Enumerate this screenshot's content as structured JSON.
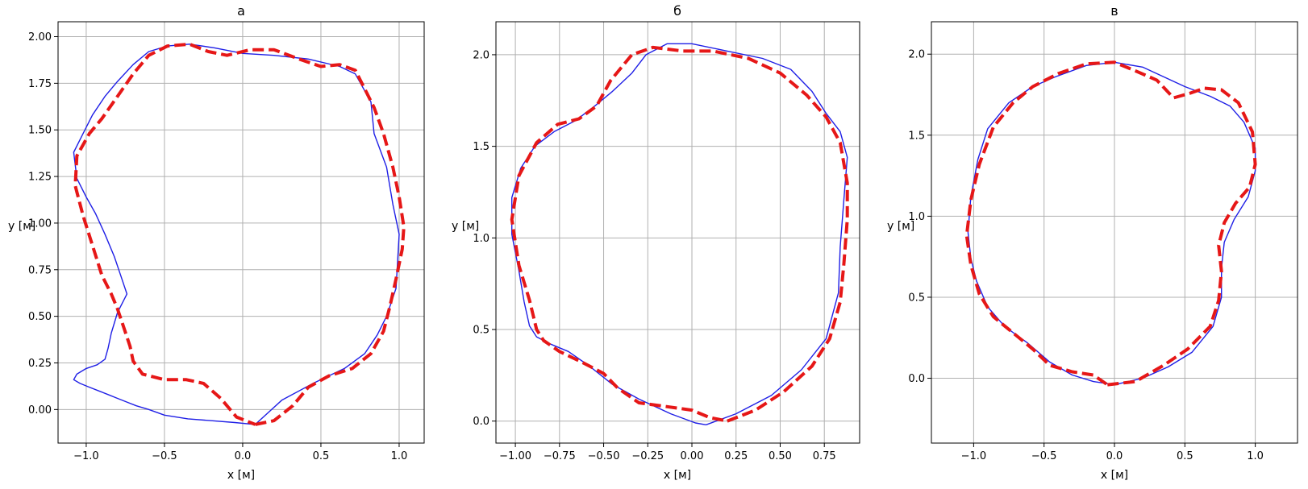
{
  "colors": {
    "reference_line": "#1f1fe6",
    "estimate_line": "#e61717"
  },
  "chart_data": [
    {
      "type": "line",
      "title": "а",
      "xlabel": "x [м]",
      "ylabel": "y [м]",
      "xlim": [
        -1.18,
        1.16
      ],
      "ylim": [
        -0.18,
        2.08
      ],
      "xticks": [
        "−1.0",
        "−0.5",
        "0.0",
        "0.5",
        "1.0"
      ],
      "xtick_values": [
        -1.0,
        -0.5,
        0.0,
        0.5,
        1.0
      ],
      "yticks": [
        "0.00",
        "0.25",
        "0.50",
        "0.75",
        "1.00",
        "1.25",
        "1.50",
        "1.75",
        "2.00"
      ],
      "ytick_values": [
        0.0,
        0.25,
        0.5,
        0.75,
        1.0,
        1.25,
        1.5,
        1.75,
        2.0
      ],
      "grid": true,
      "series": [
        {
          "style": "solid",
          "color": "#1f1fe6",
          "x": [
            0.08,
            0.25,
            0.45,
            0.65,
            0.78,
            0.86,
            0.92,
            0.98,
            1.0,
            0.96,
            0.92,
            0.84,
            0.82,
            0.72,
            0.62,
            0.42,
            0.2,
            0.0,
            -0.18,
            -0.34,
            -0.48,
            -0.6,
            -0.7,
            -0.8,
            -0.88,
            -0.96,
            -1.02,
            -1.08,
            -1.06,
            -1.0,
            -0.94,
            -0.88,
            -0.82,
            -0.78,
            -0.74,
            -0.8,
            -0.84,
            -0.86,
            -0.88,
            -0.93,
            -1.0,
            -1.06,
            -1.08,
            -1.04,
            -0.98,
            -0.92,
            -0.86,
            -0.8,
            -0.74,
            -0.68,
            -0.6,
            -0.5,
            -0.35,
            -0.2,
            -0.05,
            0.08
          ],
          "y": [
            -0.08,
            0.05,
            0.14,
            0.22,
            0.3,
            0.4,
            0.5,
            0.65,
            0.94,
            1.1,
            1.3,
            1.48,
            1.65,
            1.8,
            1.84,
            1.88,
            1.9,
            1.91,
            1.94,
            1.96,
            1.95,
            1.92,
            1.85,
            1.76,
            1.68,
            1.58,
            1.48,
            1.38,
            1.24,
            1.14,
            1.05,
            0.94,
            0.82,
            0.72,
            0.62,
            0.52,
            0.41,
            0.33,
            0.27,
            0.24,
            0.22,
            0.19,
            0.16,
            0.14,
            0.12,
            0.1,
            0.08,
            0.06,
            0.04,
            0.02,
            0.0,
            -0.03,
            -0.05,
            -0.06,
            -0.07,
            -0.08
          ]
        },
        {
          "style": "dashed",
          "color": "#e61717",
          "x": [
            0.08,
            0.2,
            0.32,
            0.42,
            0.55,
            0.7,
            0.82,
            0.9,
            0.94,
            0.98,
            1.02,
            1.03,
            1.0,
            0.96,
            0.9,
            0.84,
            0.78,
            0.72,
            0.62,
            0.5,
            0.36,
            0.2,
            0.05,
            -0.1,
            -0.22,
            -0.34,
            -0.48,
            -0.6,
            -0.7,
            -0.8,
            -0.9,
            -0.98,
            -1.06,
            -1.07,
            -1.02,
            -0.96,
            -0.9,
            -0.84,
            -0.8,
            -0.76,
            -0.72,
            -0.7,
            -0.64,
            -0.5,
            -0.36,
            -0.25,
            -0.14,
            -0.04,
            0.08
          ],
          "y": [
            -0.08,
            -0.06,
            0.02,
            0.12,
            0.18,
            0.22,
            0.3,
            0.42,
            0.55,
            0.7,
            0.86,
            0.98,
            1.14,
            1.3,
            1.48,
            1.62,
            1.72,
            1.82,
            1.85,
            1.84,
            1.88,
            1.93,
            1.93,
            1.9,
            1.92,
            1.96,
            1.95,
            1.9,
            1.8,
            1.68,
            1.56,
            1.48,
            1.36,
            1.2,
            1.04,
            0.88,
            0.72,
            0.62,
            0.54,
            0.44,
            0.34,
            0.26,
            0.19,
            0.16,
            0.16,
            0.14,
            0.06,
            -0.04,
            -0.08
          ]
        }
      ]
    },
    {
      "type": "line",
      "title": "б",
      "xlabel": "x [м]",
      "ylabel": "y [м]",
      "xlim": [
        -1.11,
        0.95
      ],
      "ylim": [
        -0.12,
        2.18
      ],
      "xticks": [
        "−1.00",
        "−0.75",
        "−0.50",
        "−0.25",
        "0.00",
        "0.25",
        "0.50",
        "0.75"
      ],
      "xtick_values": [
        -1.0,
        -0.75,
        -0.5,
        -0.25,
        0.0,
        0.25,
        0.5,
        0.75
      ],
      "yticks": [
        "0.0",
        "0.5",
        "1.0",
        "1.5",
        "2.0"
      ],
      "ytick_values": [
        0.0,
        0.5,
        1.0,
        1.5,
        2.0
      ],
      "grid": true,
      "series": [
        {
          "style": "solid",
          "color": "#1f1fe6",
          "x": [
            0.08,
            0.25,
            0.45,
            0.62,
            0.76,
            0.83,
            0.84,
            0.86,
            0.88,
            0.84,
            0.76,
            0.68,
            0.56,
            0.4,
            0.2,
            0.0,
            -0.14,
            -0.26,
            -0.34,
            -0.45,
            -0.55,
            -0.66,
            -0.78,
            -0.89,
            -0.97,
            -1.02,
            -1.02,
            -0.98,
            -0.95,
            -0.92,
            -0.88,
            -0.8,
            -0.7,
            -0.58,
            -0.45,
            -0.3,
            -0.12,
            0.02,
            0.08
          ],
          "y": [
            -0.02,
            0.04,
            0.14,
            0.28,
            0.45,
            0.7,
            0.95,
            1.2,
            1.44,
            1.58,
            1.68,
            1.8,
            1.92,
            1.98,
            2.02,
            2.06,
            2.06,
            2.0,
            1.9,
            1.8,
            1.72,
            1.64,
            1.58,
            1.5,
            1.38,
            1.22,
            1.02,
            0.82,
            0.65,
            0.52,
            0.46,
            0.42,
            0.38,
            0.3,
            0.2,
            0.12,
            0.04,
            -0.01,
            -0.02
          ]
        },
        {
          "style": "dashed",
          "color": "#e61717",
          "x": [
            0.2,
            0.36,
            0.52,
            0.68,
            0.78,
            0.84,
            0.86,
            0.88,
            0.88,
            0.84,
            0.76,
            0.65,
            0.5,
            0.32,
            0.12,
            -0.05,
            -0.22,
            -0.34,
            -0.46,
            -0.54,
            -0.64,
            -0.76,
            -0.88,
            -0.98,
            -1.02,
            -0.98,
            -0.92,
            -0.88,
            -0.84,
            -0.75,
            -0.62,
            -0.5,
            -0.42,
            -0.3,
            -0.15,
            0.0,
            0.1,
            0.2
          ],
          "y": [
            0.0,
            0.06,
            0.16,
            0.3,
            0.45,
            0.65,
            0.85,
            1.1,
            1.3,
            1.52,
            1.66,
            1.78,
            1.9,
            1.98,
            2.02,
            2.02,
            2.04,
            2.0,
            1.86,
            1.72,
            1.65,
            1.62,
            1.52,
            1.34,
            1.1,
            0.85,
            0.66,
            0.5,
            0.44,
            0.38,
            0.32,
            0.26,
            0.18,
            0.1,
            0.08,
            0.06,
            0.02,
            0.0
          ]
        }
      ]
    },
    {
      "type": "line",
      "title": "в",
      "xlabel": "x [м]",
      "ylabel": "y [м]",
      "xlim": [
        -1.3,
        1.3
      ],
      "ylim": [
        -0.4,
        2.2
      ],
      "xticks": [
        "−1.0",
        "−0.5",
        "0.0",
        "0.5",
        "1.0"
      ],
      "xtick_values": [
        -1.0,
        -0.5,
        0.0,
        0.5,
        1.0
      ],
      "yticks": [
        "0.0",
        "0.5",
        "1.0",
        "1.5",
        "2.0"
      ],
      "ytick_values": [
        0.0,
        0.5,
        1.0,
        1.5,
        2.0
      ],
      "grid": true,
      "series": [
        {
          "style": "solid",
          "color": "#1f1fe6",
          "x": [
            0.0,
            0.2,
            0.38,
            0.55,
            0.7,
            0.76,
            0.76,
            0.78,
            0.85,
            0.95,
            1.0,
            1.0,
            0.92,
            0.82,
            0.68,
            0.5,
            0.35,
            0.2,
            0.0,
            -0.2,
            -0.42,
            -0.58,
            -0.75,
            -0.9,
            -0.97,
            -1.02,
            -1.04,
            -1.02,
            -0.98,
            -0.9,
            -0.78,
            -0.62,
            -0.46,
            -0.3,
            -0.15,
            0.0
          ],
          "y": [
            -0.04,
            0.0,
            0.07,
            0.16,
            0.32,
            0.5,
            0.68,
            0.84,
            0.98,
            1.12,
            1.28,
            1.42,
            1.58,
            1.68,
            1.74,
            1.8,
            1.86,
            1.92,
            1.95,
            1.93,
            1.86,
            1.8,
            1.7,
            1.54,
            1.35,
            1.12,
            0.9,
            0.74,
            0.6,
            0.44,
            0.32,
            0.22,
            0.1,
            0.02,
            -0.02,
            -0.04
          ]
        },
        {
          "style": "dashed",
          "color": "#e61717",
          "x": [
            -0.05,
            0.15,
            0.35,
            0.52,
            0.68,
            0.74,
            0.76,
            0.74,
            0.78,
            0.86,
            0.96,
            1.0,
            0.98,
            0.88,
            0.76,
            0.64,
            0.54,
            0.46,
            0.42,
            0.3,
            0.14,
            0.0,
            -0.2,
            -0.4,
            -0.58,
            -0.72,
            -0.86,
            -0.96,
            -1.02,
            -1.05,
            -1.02,
            -0.96,
            -0.86,
            -0.72,
            -0.58,
            -0.46,
            -0.3,
            -0.15,
            -0.05
          ],
          "y": [
            -0.04,
            -0.02,
            0.08,
            0.18,
            0.32,
            0.48,
            0.66,
            0.82,
            0.96,
            1.08,
            1.18,
            1.32,
            1.52,
            1.7,
            1.78,
            1.79,
            1.76,
            1.74,
            1.73,
            1.84,
            1.9,
            1.95,
            1.94,
            1.88,
            1.8,
            1.7,
            1.55,
            1.32,
            1.1,
            0.88,
            0.7,
            0.52,
            0.38,
            0.28,
            0.18,
            0.08,
            0.04,
            0.02,
            -0.04
          ]
        }
      ]
    }
  ]
}
